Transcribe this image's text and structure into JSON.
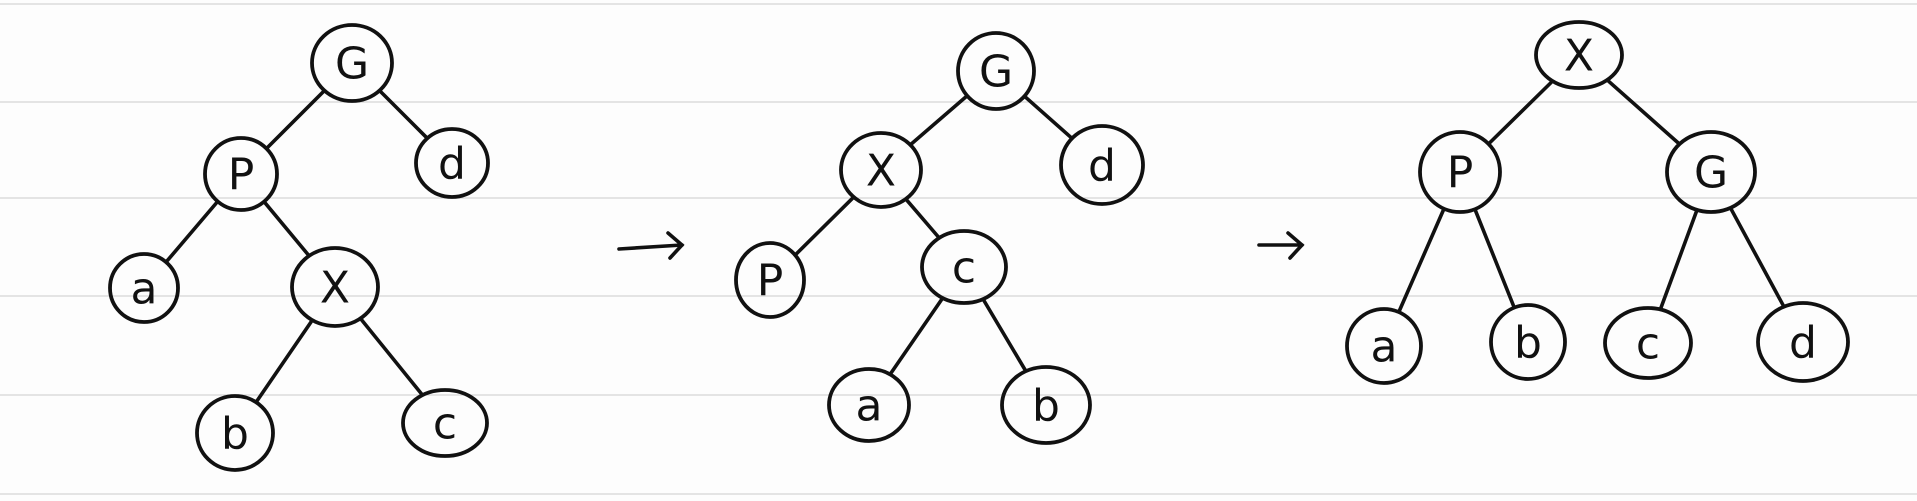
{
  "diagrams": [
    {
      "id": "tree-1",
      "nodes": [
        {
          "id": "t1-G",
          "label": "G"
        },
        {
          "id": "t1-P",
          "label": "P"
        },
        {
          "id": "t1-d",
          "label": "d"
        },
        {
          "id": "t1-a",
          "label": "a"
        },
        {
          "id": "t1-X",
          "label": "X"
        },
        {
          "id": "t1-b",
          "label": "b"
        },
        {
          "id": "t1-c",
          "label": "c"
        }
      ],
      "edges": [
        [
          "t1-G",
          "t1-P"
        ],
        [
          "t1-G",
          "t1-d"
        ],
        [
          "t1-P",
          "t1-a"
        ],
        [
          "t1-P",
          "t1-X"
        ],
        [
          "t1-X",
          "t1-b"
        ],
        [
          "t1-X",
          "t1-c"
        ]
      ]
    },
    {
      "id": "tree-2",
      "nodes": [
        {
          "id": "t2-G",
          "label": "G"
        },
        {
          "id": "t2-X",
          "label": "X"
        },
        {
          "id": "t2-d",
          "label": "d"
        },
        {
          "id": "t2-P",
          "label": "P"
        },
        {
          "id": "t2-c",
          "label": "c"
        },
        {
          "id": "t2-a",
          "label": "a"
        },
        {
          "id": "t2-b",
          "label": "b"
        }
      ],
      "edges": [
        [
          "t2-G",
          "t2-X"
        ],
        [
          "t2-G",
          "t2-d"
        ],
        [
          "t2-X",
          "t2-P"
        ],
        [
          "t2-X",
          "t2-c"
        ],
        [
          "t2-c",
          "t2-a"
        ],
        [
          "t2-c",
          "t2-b"
        ]
      ]
    },
    {
      "id": "tree-3",
      "nodes": [
        {
          "id": "t3-X",
          "label": "X"
        },
        {
          "id": "t3-P",
          "label": "P"
        },
        {
          "id": "t3-G",
          "label": "G"
        },
        {
          "id": "t3-a",
          "label": "a"
        },
        {
          "id": "t3-b",
          "label": "b"
        },
        {
          "id": "t3-c",
          "label": "c"
        },
        {
          "id": "t3-d",
          "label": "d"
        }
      ],
      "edges": [
        [
          "t3-X",
          "t3-P"
        ],
        [
          "t3-X",
          "t3-G"
        ],
        [
          "t3-P",
          "t3-a"
        ],
        [
          "t3-P",
          "t3-b"
        ],
        [
          "t3-G",
          "t3-c"
        ],
        [
          "t3-G",
          "t3-d"
        ]
      ]
    }
  ],
  "arrows": [
    {
      "id": "arrow-1",
      "label": "→"
    },
    {
      "id": "arrow-2",
      "label": "→"
    }
  ]
}
